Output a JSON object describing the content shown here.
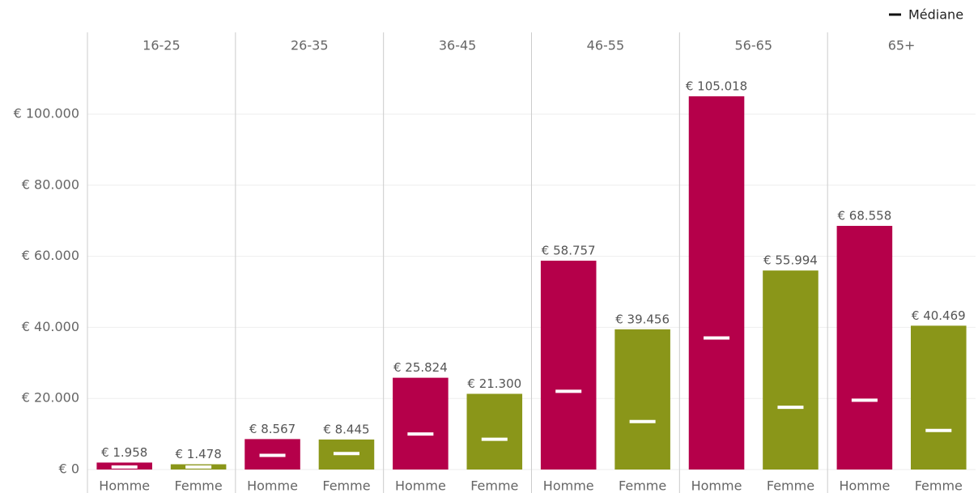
{
  "chart_data": {
    "type": "bar",
    "colors": [
      "#b5004a",
      "#8a9619"
    ],
    "median_name": "Médiane",
    "median_color": "#ffffff",
    "ylim": [
      0,
      123000
    ],
    "yticks": [
      {
        "value": 0,
        "label": "€ 0"
      },
      {
        "value": 20000,
        "label": "€ 20.000"
      },
      {
        "value": 40000,
        "label": "€ 40.000"
      },
      {
        "value": 60000,
        "label": "€ 60.000"
      },
      {
        "value": 80000,
        "label": "€ 80.000"
      },
      {
        "value": 100000,
        "label": "€ 100.000"
      }
    ],
    "grid": true,
    "panels": [
      {
        "title": "16-25",
        "categories": [
          "Homme",
          "Femme"
        ],
        "values": [
          1958,
          1478
        ],
        "value_labels": [
          "€ 1.958",
          "€ 1.478"
        ],
        "medians": [
          700,
          700
        ]
      },
      {
        "title": "26-35",
        "categories": [
          "Homme",
          "Femme"
        ],
        "values": [
          8567,
          8445
        ],
        "value_labels": [
          "€ 8.567",
          "€ 8.445"
        ],
        "medians": [
          4000,
          4500
        ]
      },
      {
        "title": "36-45",
        "categories": [
          "Homme",
          "Femme"
        ],
        "values": [
          25824,
          21300
        ],
        "value_labels": [
          "€ 25.824",
          "€ 21.300"
        ],
        "medians": [
          10000,
          8500
        ]
      },
      {
        "title": "46-55",
        "categories": [
          "Homme",
          "Femme"
        ],
        "values": [
          58757,
          39456
        ],
        "value_labels": [
          "€ 58.757",
          "€ 39.456"
        ],
        "medians": [
          22000,
          13500
        ]
      },
      {
        "title": "56-65",
        "categories": [
          "Homme",
          "Femme"
        ],
        "values": [
          105018,
          55994
        ],
        "value_labels": [
          "€ 105.018",
          "€ 55.994"
        ],
        "medians": [
          37000,
          17500
        ]
      },
      {
        "title": "65+",
        "categories": [
          "Homme",
          "Femme"
        ],
        "values": [
          68558,
          40469
        ],
        "value_labels": [
          "€ 68.558",
          "€ 40.469"
        ],
        "medians": [
          19500,
          11000
        ]
      }
    ]
  }
}
